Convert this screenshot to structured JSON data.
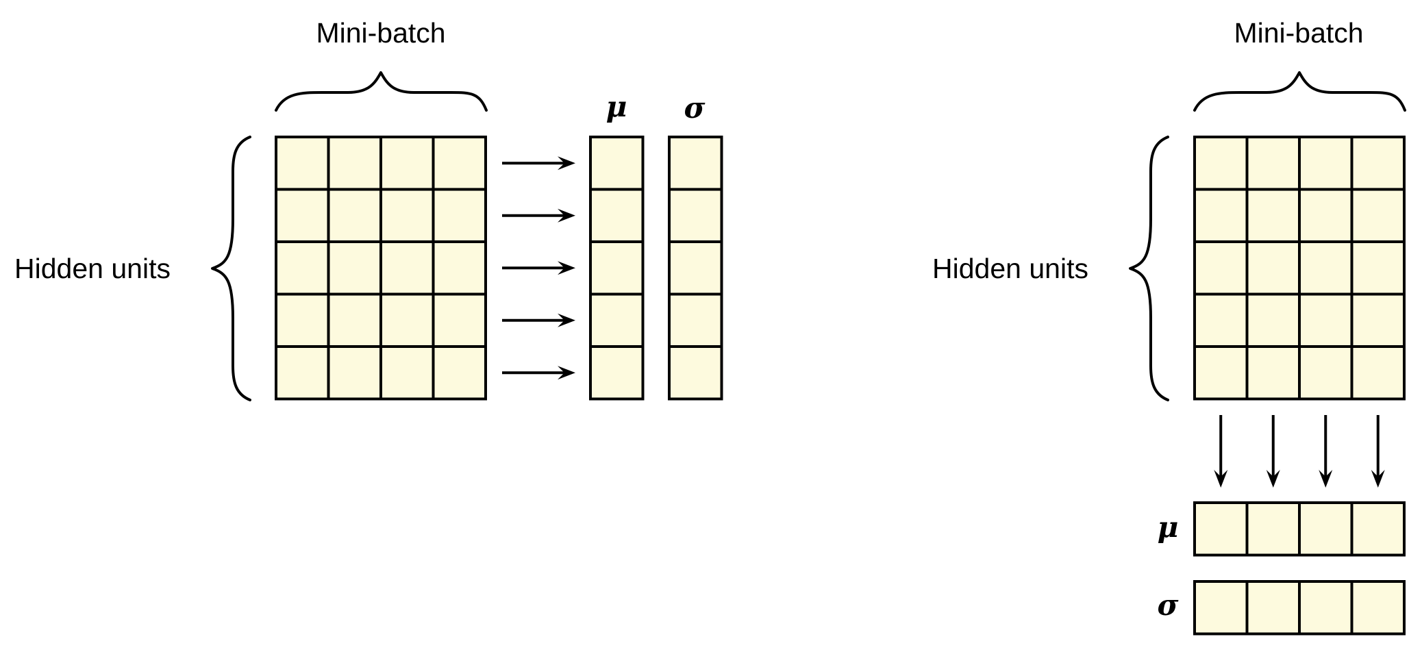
{
  "colors": {
    "cell_fill": "#fdfade",
    "stroke": "#000000",
    "background": "#ffffff"
  },
  "left_panel": {
    "title": "Mini-batch",
    "side_label": "Hidden units",
    "mean_symbol": "μ",
    "std_symbol": "σ",
    "rows": 5,
    "cols": 4,
    "arrow_direction": "right"
  },
  "right_panel": {
    "title": "Mini-batch",
    "side_label": "Hidden units",
    "mean_symbol": "μ",
    "std_symbol": "σ",
    "rows": 5,
    "cols": 4,
    "arrow_direction": "down"
  }
}
